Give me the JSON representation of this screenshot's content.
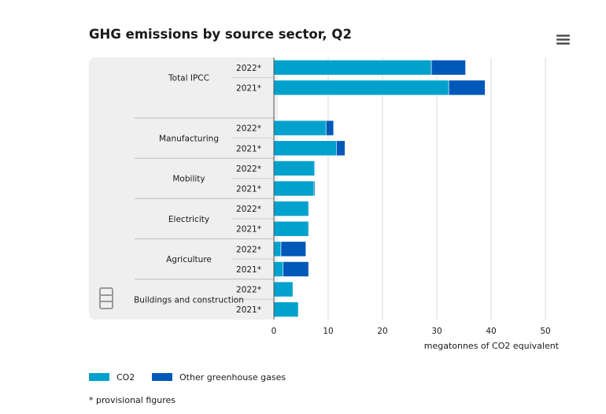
{
  "chart_data": {
    "type": "bar",
    "orientation": "horizontal",
    "stacked": true,
    "title": "GHG emissions by source sector, Q2",
    "xlabel": "megatonnes of CO2 equivalent",
    "xlim": [
      0,
      50
    ],
    "x_ticks": [
      "0",
      "10",
      "20",
      "30",
      "40",
      "50"
    ],
    "grid": true,
    "legend_position": "bottom-left",
    "groups": [
      {
        "name": "Total IPCC",
        "rows": [
          {
            "label": "2022*",
            "values": [
              29.0,
              6.3
            ]
          },
          {
            "label": "2021*",
            "values": [
              32.2,
              6.7
            ]
          }
        ]
      },
      {
        "name": "Manufacturing",
        "rows": [
          {
            "label": "2022*",
            "values": [
              9.6,
              1.4
            ]
          },
          {
            "label": "2021*",
            "values": [
              11.5,
              1.6
            ]
          }
        ]
      },
      {
        "name": "Mobility",
        "rows": [
          {
            "label": "2022*",
            "values": [
              7.5,
              0.1
            ]
          },
          {
            "label": "2021*",
            "values": [
              7.4,
              0.2
            ]
          }
        ]
      },
      {
        "name": "Electricity",
        "rows": [
          {
            "label": "2022*",
            "values": [
              6.4,
              0.1
            ]
          },
          {
            "label": "2021*",
            "values": [
              6.4,
              0.1
            ]
          }
        ]
      },
      {
        "name": "Agriculture",
        "rows": [
          {
            "label": "2022*",
            "values": [
              1.3,
              4.6
            ]
          },
          {
            "label": "2021*",
            "values": [
              1.7,
              4.7
            ]
          }
        ]
      },
      {
        "name": "Buildings and construction",
        "rows": [
          {
            "label": "2022*",
            "values": [
              3.5,
              0.0
            ]
          },
          {
            "label": "2021*",
            "values": [
              4.5,
              0.0
            ]
          }
        ]
      }
    ],
    "series": [
      {
        "name": "CO2",
        "color": "#00a1cd"
      },
      {
        "name": "Other greenhouse gases",
        "color": "#0058b8"
      }
    ],
    "footnote": "* provisional figures"
  },
  "colors": {
    "panel": "#efefef",
    "grid": "#d9d9d9",
    "axis": "#555555",
    "icon": "#555555",
    "logo": "#9a9a9a"
  },
  "icons": {
    "menu": "hamburger-menu-icon",
    "logo": "cbs-logo-icon"
  }
}
